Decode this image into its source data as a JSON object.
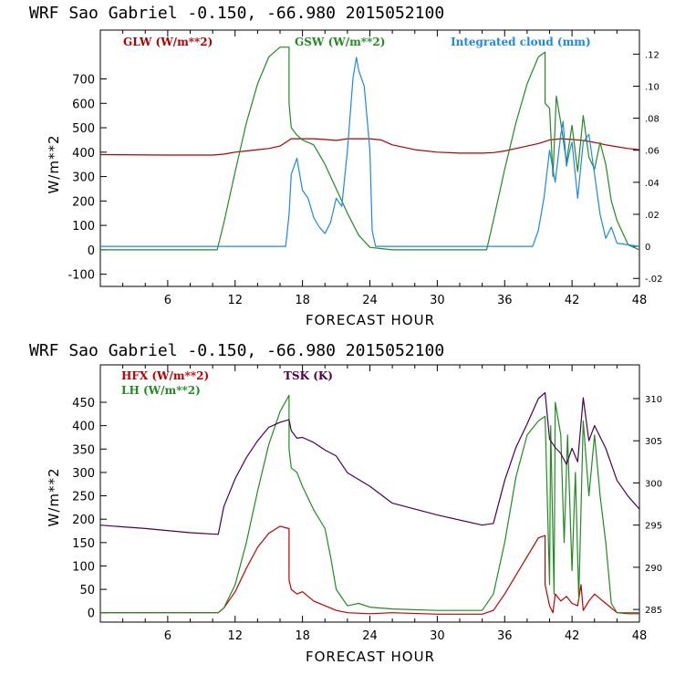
{
  "chart_data": [
    {
      "type": "line",
      "title": "WRF   Sao Gabriel    -0.150, -66.980  2015052100",
      "xlabel": "FORECAST HOUR",
      "ylabel": "W/m**2",
      "xlim": [
        0,
        48
      ],
      "ylim": [
        -150,
        900
      ],
      "y2lim": [
        -0.025,
        0.135
      ],
      "xticks": [
        6,
        12,
        18,
        24,
        30,
        36,
        42,
        48
      ],
      "xtick_labels": [
        "6",
        "12",
        "18",
        "24",
        "30",
        "36",
        "42",
        "48"
      ],
      "yticks": [
        -100,
        0,
        100,
        200,
        300,
        400,
        500,
        600,
        700
      ],
      "ytick_labels": [
        "-100",
        "0",
        "100",
        "200",
        "300",
        "400",
        "500",
        "600",
        "700"
      ],
      "y2ticks": [
        -0.02,
        0,
        0.02,
        0.04,
        0.06,
        0.08,
        0.1,
        0.12
      ],
      "y2tick_labels": [
        "-.02",
        "0",
        ".02",
        ".04",
        ".06",
        ".08",
        ".10",
        ".12"
      ],
      "series": [
        {
          "name": "GLW (W/m**2)",
          "axis": "left",
          "color": "#b00000",
          "x": [
            0,
            6,
            10,
            11,
            12,
            13,
            14,
            15,
            16,
            17,
            18,
            19,
            20,
            21,
            22,
            23,
            24,
            25,
            26,
            28,
            30,
            32,
            34,
            35,
            36,
            37,
            38,
            39,
            40,
            41,
            42,
            43,
            44,
            45,
            46,
            47,
            48
          ],
          "values": [
            390,
            388,
            388,
            392,
            400,
            405,
            410,
            415,
            425,
            455,
            455,
            455,
            452,
            448,
            455,
            455,
            455,
            450,
            430,
            410,
            400,
            396,
            396,
            398,
            405,
            415,
            425,
            435,
            450,
            455,
            452,
            448,
            440,
            430,
            422,
            415,
            410
          ]
        },
        {
          "name": "GSW (W/m**2)",
          "axis": "left",
          "color": "#228b22",
          "x": [
            0,
            10.4,
            11,
            12,
            13,
            14,
            15,
            16,
            16.8,
            16.8,
            17,
            17.5,
            18,
            19,
            20,
            21,
            22,
            23,
            24,
            26,
            30,
            34,
            34.4,
            35,
            36,
            37,
            38,
            39,
            39.6,
            39.6,
            40,
            40.3,
            40.6,
            41,
            41.5,
            42,
            42.5,
            43,
            43.5,
            44,
            44.5,
            45,
            45.5,
            46,
            47,
            48
          ],
          "values": [
            0,
            0,
            110,
            320,
            520,
            680,
            790,
            830,
            830,
            600,
            500,
            470,
            450,
            430,
            350,
            250,
            150,
            60,
            10,
            0,
            0,
            0,
            0,
            120,
            330,
            520,
            680,
            790,
            810,
            600,
            580,
            300,
            630,
            520,
            360,
            510,
            320,
            550,
            380,
            330,
            440,
            350,
            200,
            120,
            20,
            0
          ]
        },
        {
          "name": "Integrated cloud (mm)",
          "axis": "right",
          "color": "#1e88e5",
          "x": [
            0,
            16.5,
            16.8,
            17,
            17.5,
            18,
            18.5,
            19,
            19.5,
            20,
            20.5,
            21,
            21.5,
            22,
            22.5,
            22.8,
            23,
            23.5,
            24,
            24.2,
            24.5,
            30,
            38.5,
            39,
            39.5,
            40,
            40.5,
            41,
            41.2,
            41.5,
            41.8,
            42,
            42.5,
            43,
            43.5,
            44,
            44.5,
            45,
            45.5,
            46,
            48
          ],
          "values": [
            0,
            0,
            0.02,
            0.045,
            0.055,
            0.035,
            0.03,
            0.018,
            0.012,
            0.008,
            0.015,
            0.03,
            0.025,
            0.06,
            0.105,
            0.118,
            0.11,
            0.1,
            0.06,
            0.01,
            0,
            0,
            0,
            0.01,
            0.03,
            0.06,
            0.04,
            0.07,
            0.078,
            0.05,
            0.06,
            0.065,
            0.03,
            0.065,
            0.07,
            0.045,
            0.02,
            0.005,
            0.012,
            0.002,
            0
          ]
        }
      ]
    },
    {
      "type": "line",
      "title": "WRF   Sao Gabriel    -0.150, -66.980  2015052100",
      "xlabel": "FORECAST HOUR",
      "ylabel": "W/m**2",
      "xlim": [
        0,
        48
      ],
      "ylim": [
        -20,
        530
      ],
      "y2lim": [
        283.5,
        314.0
      ],
      "xticks": [
        6,
        12,
        18,
        24,
        30,
        36,
        42,
        48
      ],
      "xtick_labels": [
        "6",
        "12",
        "18",
        "24",
        "30",
        "36",
        "42",
        "48"
      ],
      "yticks": [
        0,
        50,
        100,
        150,
        200,
        250,
        300,
        350,
        400,
        450
      ],
      "ytick_labels": [
        "0",
        "50",
        "100",
        "150",
        "200",
        "250",
        "300",
        "350",
        "400",
        "450"
      ],
      "y2ticks": [
        285,
        290,
        295,
        300,
        305,
        310
      ],
      "y2tick_labels": [
        "285",
        "290",
        "295",
        "300",
        "305",
        "310"
      ],
      "series": [
        {
          "name": "HFX (W/m**2)",
          "axis": "left",
          "color": "#c00000",
          "x": [
            0,
            10.5,
            11,
            12,
            13,
            14,
            15,
            16,
            16.8,
            16.8,
            17,
            17.5,
            18,
            18.5,
            19,
            20,
            21,
            22,
            24,
            26,
            30,
            34,
            35,
            36,
            37,
            38,
            39,
            39.6,
            39.6,
            40,
            40.3,
            40.5,
            41,
            41.5,
            42,
            42.5,
            42.8,
            43,
            43.5,
            44,
            44.5,
            45,
            45.5,
            46,
            47,
            48
          ],
          "values": [
            0,
            0,
            10,
            45,
            95,
            140,
            170,
            185,
            180,
            70,
            50,
            40,
            45,
            35,
            25,
            15,
            5,
            0,
            -2,
            0,
            -3,
            -3,
            5,
            40,
            80,
            120,
            160,
            165,
            60,
            15,
            0,
            40,
            25,
            35,
            20,
            15,
            60,
            5,
            25,
            40,
            30,
            20,
            10,
            0,
            -2,
            -2
          ]
        },
        {
          "name": "LH (W/m**2)",
          "axis": "left",
          "color": "#228b22",
          "x": [
            0,
            10.5,
            11,
            12,
            13,
            14,
            15,
            16,
            16.8,
            16.8,
            17,
            17.5,
            18,
            19,
            20,
            20.5,
            21,
            22,
            23,
            24,
            26,
            30,
            34,
            35,
            36,
            37,
            38,
            39,
            39.6,
            40,
            40.1,
            40.4,
            40.5,
            41,
            41.3,
            41.6,
            42,
            42.3,
            42.6,
            43,
            43.5,
            44,
            44.5,
            45,
            45.5,
            46,
            47,
            48
          ],
          "values": [
            0,
            0,
            10,
            60,
            150,
            260,
            360,
            430,
            465,
            350,
            310,
            300,
            270,
            220,
            180,
            120,
            50,
            15,
            20,
            12,
            8,
            5,
            5,
            40,
            150,
            290,
            380,
            410,
            420,
            60,
            400,
            40,
            450,
            380,
            150,
            380,
            90,
            300,
            30,
            410,
            250,
            380,
            250,
            150,
            20,
            0,
            0,
            0
          ]
        },
        {
          "name": "TSK (K)",
          "axis": "right",
          "color": "#4a0050",
          "x": [
            0,
            4,
            8,
            10.5,
            11,
            12,
            13,
            14,
            15,
            16,
            16.8,
            17,
            17.5,
            18,
            19,
            20,
            21,
            22,
            24,
            26,
            30,
            34,
            35,
            36,
            37,
            38,
            39,
            39.6,
            40,
            40.5,
            41,
            41.5,
            42,
            42.5,
            43,
            43.5,
            44,
            45,
            46,
            47,
            48
          ],
          "values": [
            295.0,
            294.6,
            294.1,
            293.9,
            297.2,
            300.5,
            303.0,
            305.0,
            306.6,
            307.2,
            307.5,
            306.2,
            305.3,
            305.4,
            304.8,
            303.9,
            303.2,
            301.2,
            299.6,
            297.6,
            296.2,
            295.0,
            295.2,
            300.3,
            304.2,
            307.0,
            310.0,
            310.7,
            305.2,
            304.2,
            303.5,
            302.2,
            304.1,
            302.5,
            310.1,
            305.0,
            306.8,
            304.1,
            300.3,
            298.4,
            296.9
          ]
        }
      ]
    }
  ]
}
